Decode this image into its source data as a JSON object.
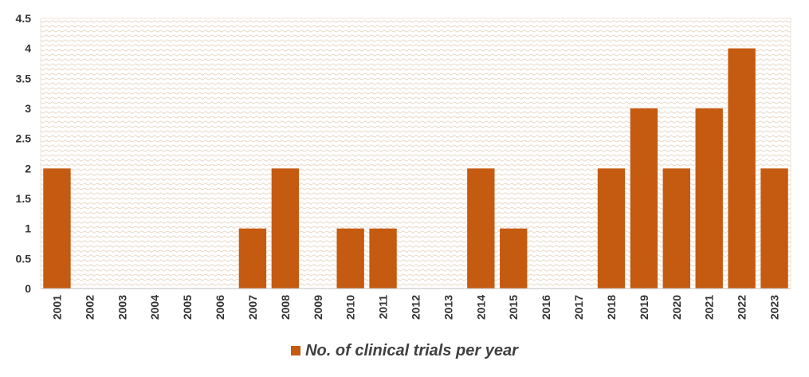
{
  "chart_data": {
    "type": "bar",
    "categories": [
      "2001",
      "2002",
      "2003",
      "2004",
      "2005",
      "2006",
      "2007",
      "2008",
      "2009",
      "2010",
      "2011",
      "2012",
      "2013",
      "2014",
      "2015",
      "2016",
      "2017",
      "2018",
      "2019",
      "2020",
      "2021",
      "2022",
      "2023"
    ],
    "series": [
      {
        "name": "No. of clinical trials per year",
        "values": [
          2,
          0,
          0,
          0,
          0,
          0,
          1,
          2,
          0,
          1,
          1,
          0,
          0,
          2,
          1,
          0,
          0,
          2,
          3,
          2,
          3,
          4,
          2
        ],
        "color": "#c55a11"
      }
    ],
    "title": "",
    "xlabel": "",
    "ylabel": "",
    "ylim": [
      0,
      4.5
    ],
    "yticks": [
      0,
      0.5,
      1,
      1.5,
      2,
      2.5,
      3,
      3.5,
      4,
      4.5
    ],
    "ytick_labels": [
      "0",
      "0.5",
      "1",
      "1.5",
      "2",
      "2.5",
      "3",
      "3.5",
      "4",
      "4.5"
    ],
    "grid": false,
    "plot_background": "patterned",
    "legend": {
      "position": "bottom"
    }
  },
  "colors": {
    "bar": "#c55a11",
    "plot_pattern": "#e9dccb",
    "axis": "#bfbfbf",
    "text": "#333333"
  }
}
